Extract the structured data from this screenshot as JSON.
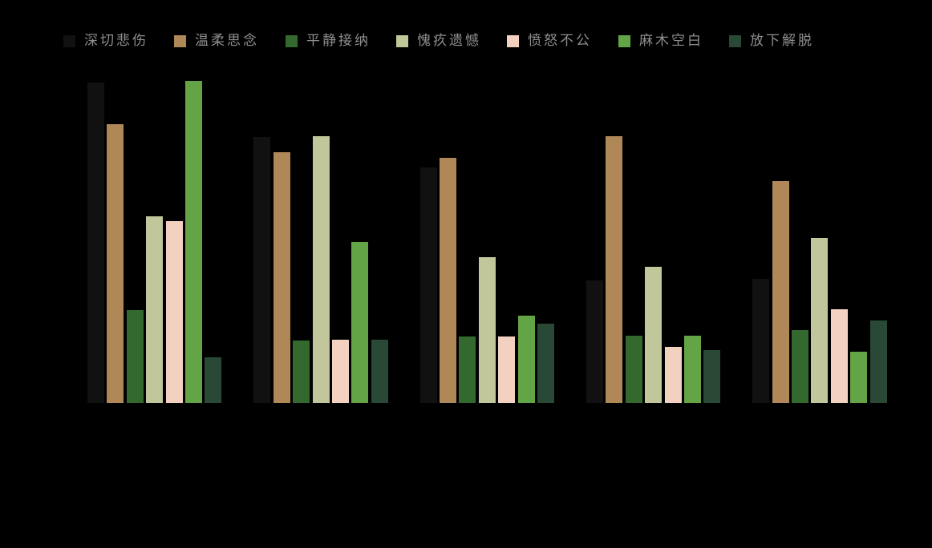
{
  "background_color": "#000000",
  "legend": {
    "text_color": "#8f8f8f",
    "position": "top"
  },
  "chart_data": {
    "type": "bar",
    "title": "",
    "xlabel": "",
    "ylabel": "",
    "categories": [
      "",
      "",
      "",
      "",
      ""
    ],
    "categories_note": "5 bar groups; x tick labels not visible (rendered black on black background)",
    "axis_visible": false,
    "grid": false,
    "legend_position": "top",
    "ylim": [
      0,
      42
    ],
    "series": [
      {
        "name": "深切悲伤",
        "color": "#111111",
        "values": [
          40.0,
          33.2,
          29.4,
          15.3,
          15.5
        ]
      },
      {
        "name": "温柔思念",
        "color": "#b08757",
        "values": [
          34.8,
          31.3,
          30.6,
          33.3,
          27.7
        ]
      },
      {
        "name": "平静接纳",
        "color": "#33682e",
        "values": [
          11.6,
          7.8,
          8.3,
          8.4,
          9.1
        ]
      },
      {
        "name": "愧疚遗憾",
        "color": "#c1c79a",
        "values": [
          23.3,
          33.3,
          18.2,
          17.0,
          20.6
        ]
      },
      {
        "name": "愤怒不公",
        "color": "#f3d1c0",
        "values": [
          22.7,
          7.9,
          8.3,
          7.0,
          11.7
        ]
      },
      {
        "name": "麻木空白",
        "color": "#62a446",
        "values": [
          40.2,
          20.1,
          10.9,
          8.4,
          6.4
        ]
      },
      {
        "name": "放下解脱",
        "color": "#294936",
        "values": [
          5.7,
          7.9,
          9.9,
          6.6,
          10.3
        ]
      }
    ]
  }
}
